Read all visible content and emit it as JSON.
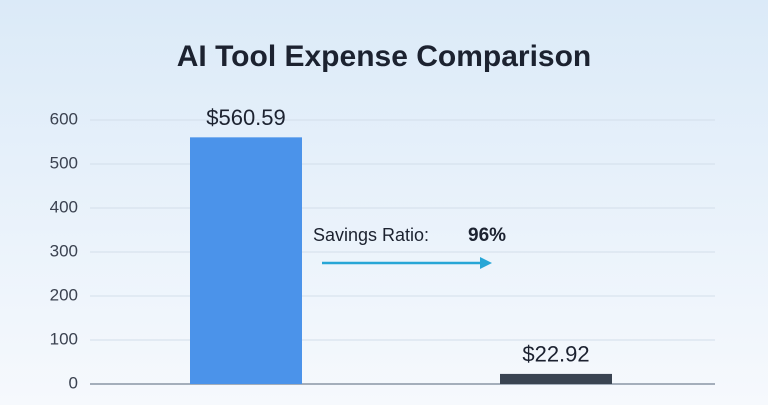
{
  "chart_data": {
    "type": "bar",
    "title": "AI Tool Expense Comparison",
    "categories": [
      null,
      null
    ],
    "values": [
      560.59,
      22.92
    ],
    "value_labels": [
      "$560.59",
      "$22.92"
    ],
    "colors": [
      "#4b93ea",
      "#3a4452"
    ],
    "ylim": [
      0,
      600
    ],
    "yticks": [
      0,
      100,
      200,
      300,
      400,
      500,
      600
    ],
    "grid": true,
    "annotation": {
      "label": "Savings Ratio:",
      "value": "96%"
    }
  }
}
